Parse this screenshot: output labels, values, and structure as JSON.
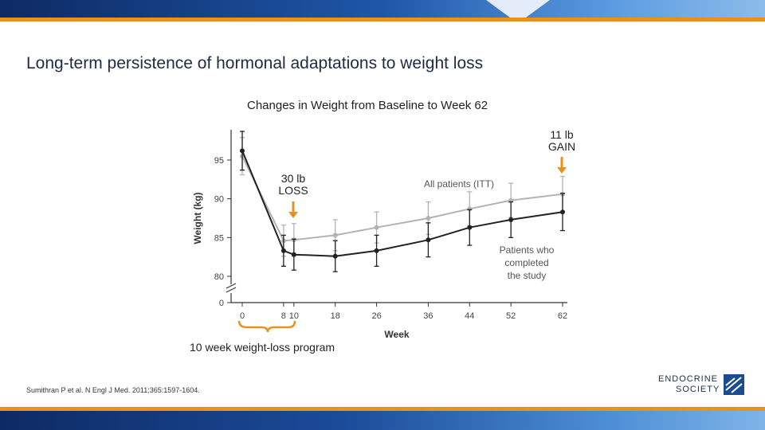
{
  "slide": {
    "title": "Long-term persistence of hormonal adaptations to weight loss",
    "chart_title": "Changes in Weight from Baseline to Week 62",
    "callouts": {
      "loss": [
        "30 lb",
        "LOSS"
      ],
      "gain": [
        "11 lb",
        "GAIN"
      ]
    },
    "program_label": "10 week weight-loss program",
    "citation": "Sumithran P et al. N Engl J Med. 2011;365:1597-1604.",
    "logo": [
      "ENDOCRINE",
      "SOCIETY"
    ]
  },
  "colors": {
    "accent_orange": "#e8921e",
    "band_dark": "#0d2a63",
    "band_light": "#7fb4e8",
    "series_itt": "#b3b3b3",
    "series_completed": "#222222"
  },
  "chart_data": {
    "type": "line",
    "ylabel": "Weight (kg)",
    "xlabel": "Week",
    "x": [
      0,
      8,
      10,
      18,
      26,
      36,
      44,
      52,
      62
    ],
    "ylim": [
      80,
      98
    ],
    "yticks": [
      80,
      85,
      90,
      95
    ],
    "ybase": 0,
    "axis_break": true,
    "series": [
      {
        "name": "All patients (ITT)",
        "values": [
          95.5,
          84.6,
          84.7,
          85.3,
          86.3,
          87.5,
          88.7,
          89.8,
          90.6
        ],
        "errors": [
          2.4,
          2.0,
          2.1,
          2.0,
          2.0,
          2.1,
          2.2,
          2.2,
          2.3
        ]
      },
      {
        "name": "Patients who completed the study",
        "values": [
          96.2,
          83.3,
          82.8,
          82.6,
          83.3,
          84.7,
          86.3,
          87.3,
          88.3
        ],
        "errors": [
          2.5,
          2.0,
          2.0,
          2.0,
          2.0,
          2.2,
          2.3,
          2.3,
          2.4
        ]
      }
    ],
    "series_labels": {
      "itt": [
        "All patients (ITT)"
      ],
      "completed": [
        "Patients who",
        "completed",
        "the study"
      ]
    }
  }
}
